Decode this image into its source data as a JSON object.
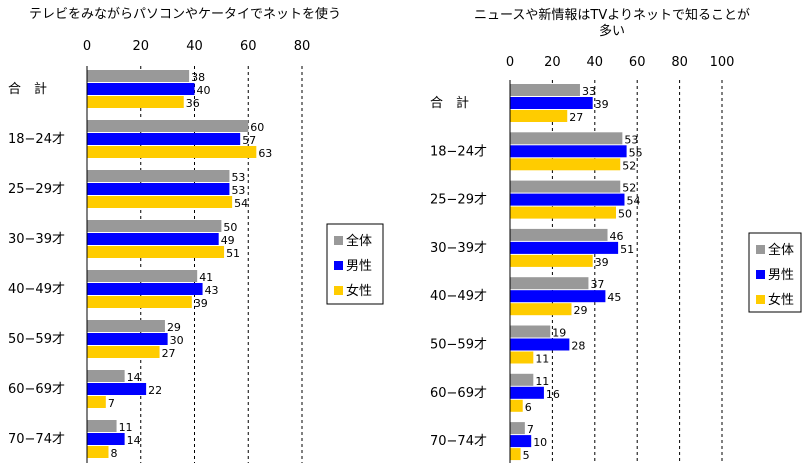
{
  "colors": {
    "all": "#999999",
    "male": "#0000ff",
    "female": "#ffcc00",
    "grid": "#000000"
  },
  "chart_data": [
    {
      "type": "bar",
      "orientation": "horizontal",
      "title": "テレビをみながらパソコンやケータイでネットを使う",
      "xlim": [
        0,
        80
      ],
      "xticks": [
        0,
        20,
        40,
        60,
        80
      ],
      "grid": true,
      "legend_position": "right",
      "categories": [
        "合　計",
        "18−24才",
        "25−29才",
        "30−39才",
        "40−49才",
        "50−59才",
        "60−69才",
        "70−74才"
      ],
      "series": [
        {
          "name": "全体",
          "color": "#999999",
          "values": [
            38,
            60,
            53,
            50,
            41,
            29,
            14,
            11
          ]
        },
        {
          "name": "男性",
          "color": "#0000ff",
          "values": [
            40,
            57,
            53,
            49,
            43,
            30,
            22,
            14
          ]
        },
        {
          "name": "女性",
          "color": "#ffcc00",
          "values": [
            36,
            63,
            54,
            51,
            39,
            27,
            7,
            8
          ]
        }
      ]
    },
    {
      "type": "bar",
      "orientation": "horizontal",
      "title": "ニュースや新情報はTVよりネットで知ることが多い",
      "xlim": [
        0,
        100
      ],
      "xticks": [
        0,
        20,
        40,
        60,
        80,
        100
      ],
      "grid": true,
      "legend_position": "right",
      "categories": [
        "合　計",
        "18−24才",
        "25−29才",
        "30−39才",
        "40−49才",
        "50−59才",
        "60−69才",
        "70−74才"
      ],
      "series": [
        {
          "name": "全体",
          "color": "#999999",
          "values": [
            33,
            53,
            52,
            46,
            37,
            19,
            11,
            7
          ]
        },
        {
          "name": "男性",
          "color": "#0000ff",
          "values": [
            39,
            55,
            54,
            51,
            45,
            28,
            16,
            10
          ]
        },
        {
          "name": "女性",
          "color": "#ffcc00",
          "values": [
            27,
            52,
            50,
            39,
            29,
            11,
            6,
            5
          ]
        }
      ]
    }
  ]
}
